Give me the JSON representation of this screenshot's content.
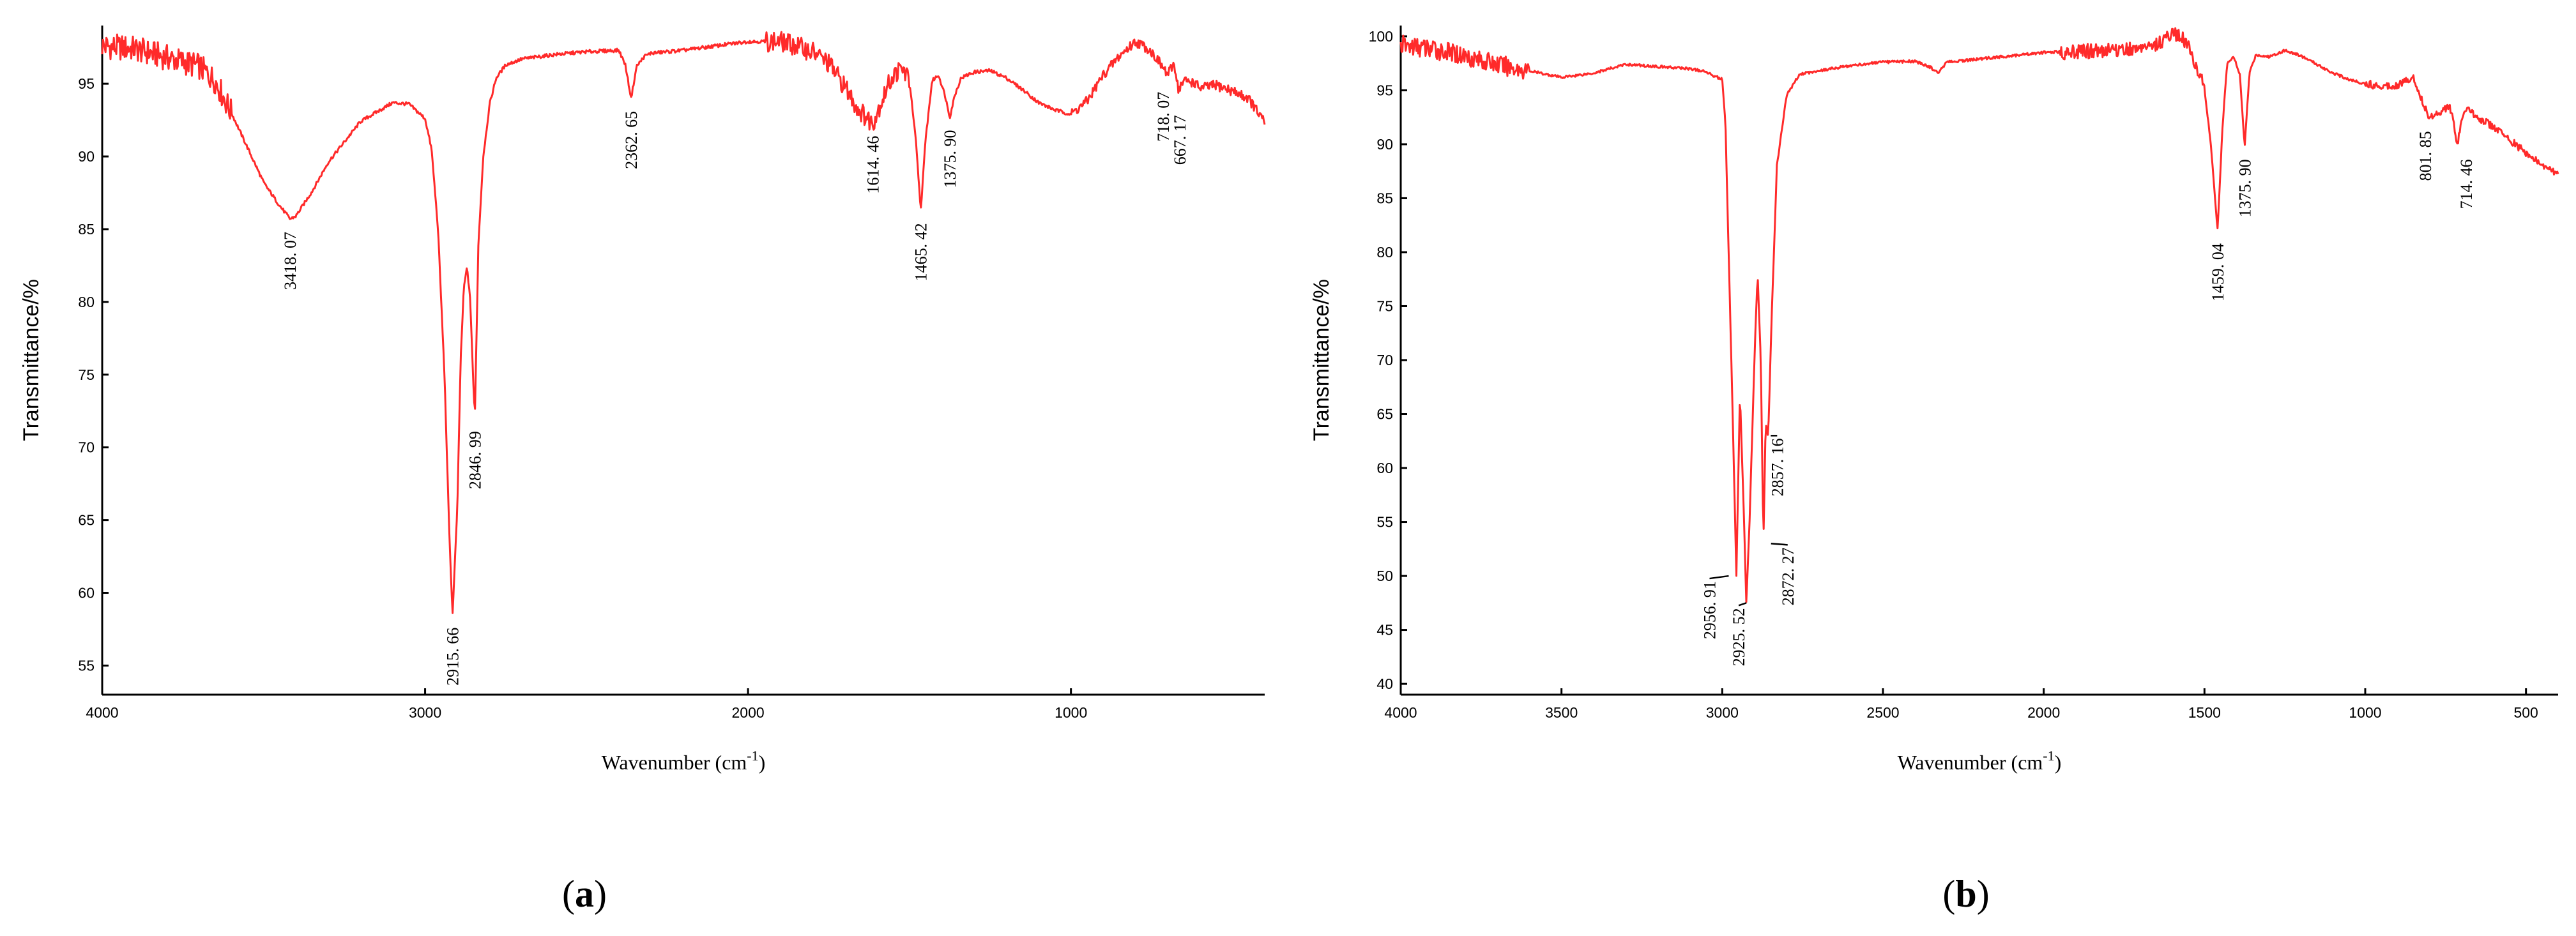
{
  "chart_data": [
    {
      "type": "line",
      "panel": "a",
      "caption": "a",
      "xlabel": "Wavenumber (cm",
      "xlabel_sup": "-1",
      "xlabel_end": ")",
      "ylabel": "Transmittance/%",
      "xlim": [
        4000,
        400
      ],
      "ylim": [
        53,
        99
      ],
      "xticks": [
        4000,
        3000,
        2000,
        1000
      ],
      "xtick_labels": [
        "4000",
        "3000",
        "2000",
        "1000"
      ],
      "yticks": [
        55,
        60,
        65,
        70,
        75,
        80,
        85,
        90,
        95
      ],
      "ytick_labels": [
        "55",
        "60",
        "65",
        "70",
        "75",
        "80",
        "85",
        "90",
        "95"
      ],
      "line_color": "#ff2a2a",
      "series": [
        {
          "x": [
            4000,
            3900,
            3850,
            3800,
            3700,
            3650,
            3600,
            3550,
            3500,
            3450,
            3418,
            3400,
            3350,
            3300,
            3200,
            3100,
            3050,
            3000,
            2980,
            2960,
            2940,
            2925,
            2915,
            2900,
            2890,
            2880,
            2870,
            2860,
            2850,
            2846,
            2835,
            2820,
            2800,
            2780,
            2750,
            2700,
            2600,
            2500,
            2400,
            2380,
            2362,
            2345,
            2320,
            2300,
            2200,
            2100,
            2000,
            1900,
            1850,
            1800,
            1750,
            1700,
            1660,
            1630,
            1614,
            1590,
            1560,
            1540,
            1520,
            1500,
            1480,
            1465,
            1450,
            1430,
            1410,
            1390,
            1375,
            1360,
            1340,
            1300,
            1250,
            1200,
            1150,
            1100,
            1050,
            1000,
            950,
            900,
            850,
            800,
            760,
            740,
            718,
            700,
            680,
            667,
            650,
            620,
            600,
            550,
            500,
            450,
            400
          ],
          "y": [
            97.6,
            97.4,
            97.1,
            96.8,
            96.2,
            95.2,
            93,
            90.6,
            88.2,
            86.6,
            85.7,
            85.9,
            87.6,
            89.6,
            92.4,
            93.7,
            93.6,
            92.6,
            90.5,
            85,
            75,
            64,
            58.5,
            66,
            76,
            81,
            82.4,
            80,
            74,
            72,
            84,
            90,
            93.6,
            95.4,
            96.3,
            96.7,
            97,
            97.2,
            97.3,
            96.3,
            94,
            96.2,
            96.9,
            97.1,
            97.3,
            97.6,
            97.9,
            97.9,
            97.6,
            97.2,
            96.4,
            94.8,
            93.3,
            92.6,
            92.3,
            93.6,
            95.2,
            95.8,
            96,
            95.2,
            91,
            86.3,
            91.2,
            95.2,
            95.6,
            94.2,
            92.7,
            94.2,
            95.4,
            95.8,
            95.9,
            95.4,
            94.6,
            93.7,
            93.2,
            92.9,
            93.8,
            95.6,
            96.9,
            97.9,
            97.4,
            96.9,
            96.2,
            95.6,
            96.4,
            94.6,
            95.2,
            95.1,
            94.7,
            94.9,
            94.5,
            94,
            92.3
          ]
        }
      ],
      "annotations": [
        {
          "text": "3418. 07",
          "x": 3418,
          "y": 85.7
        },
        {
          "text": "2915. 66",
          "x": 2915,
          "y": 58.5
        },
        {
          "text": "2846. 99",
          "x": 2846,
          "y": 72
        },
        {
          "text": "2362. 65",
          "x": 2362,
          "y": 94
        },
        {
          "text": "1614. 46",
          "x": 1614,
          "y": 92.3
        },
        {
          "text": "1465. 42",
          "x": 1465,
          "y": 86.3
        },
        {
          "text": "1375. 90",
          "x": 1375,
          "y": 92.7
        },
        {
          "text": "718. 07",
          "x": 718,
          "y": 96.2
        },
        {
          "text": "667. 17",
          "x": 667,
          "y": 94.6
        }
      ]
    },
    {
      "type": "line",
      "panel": "b",
      "caption": "b",
      "xlabel": "Wavenumber (cm",
      "xlabel_sup": "-1",
      "xlabel_end": ")",
      "ylabel": "Transmittance/%",
      "xlim": [
        4000,
        400
      ],
      "ylim": [
        39,
        101
      ],
      "xticks": [
        4000,
        3500,
        3000,
        2500,
        2000,
        1500,
        1000,
        500
      ],
      "xtick_labels": [
        "4000",
        "3500",
        "3000",
        "2500",
        "2000",
        "1500",
        "1000",
        "500"
      ],
      "yticks": [
        40,
        45,
        50,
        55,
        60,
        65,
        70,
        75,
        80,
        85,
        90,
        95,
        100
      ],
      "ytick_labels": [
        "40",
        "45",
        "50",
        "55",
        "60",
        "65",
        "70",
        "75",
        "80",
        "85",
        "90",
        "95",
        "100"
      ],
      "line_color": "#ff2a2a",
      "series": [
        {
          "x": [
            4000,
            3900,
            3800,
            3700,
            3600,
            3500,
            3400,
            3300,
            3200,
            3100,
            3050,
            3000,
            2990,
            2970,
            2956,
            2945,
            2935,
            2925,
            2915,
            2900,
            2890,
            2880,
            2872,
            2865,
            2857,
            2845,
            2830,
            2800,
            2760,
            2700,
            2600,
            2500,
            2400,
            2350,
            2330,
            2310,
            2300,
            2200,
            2100,
            2000,
            1900,
            1800,
            1700,
            1650,
            1600,
            1560,
            1530,
            1500,
            1480,
            1470,
            1459,
            1445,
            1430,
            1410,
            1390,
            1375,
            1360,
            1340,
            1300,
            1250,
            1200,
            1150,
            1100,
            1050,
            1000,
            950,
            900,
            850,
            830,
            801,
            780,
            760,
            740,
            730,
            714,
            700,
            680,
            650,
            600,
            550,
            500,
            450,
            400
          ],
          "y": [
            99.2,
            98.8,
            98.2,
            97.4,
            96.8,
            96.2,
            96.6,
            97.4,
            97.2,
            97,
            96.7,
            96,
            92,
            68,
            50,
            67,
            58,
            47.5,
            55,
            70,
            78,
            70,
            53,
            64,
            63,
            75,
            88,
            94.5,
            96.5,
            96.8,
            97.3,
            97.6,
            97.7,
            97.1,
            96.6,
            97.3,
            97.6,
            97.9,
            98.2,
            98.5,
            98.6,
            98.7,
            98.9,
            99.2,
            100.3,
            99.6,
            97.6,
            95.2,
            90,
            86,
            82,
            91,
            97.4,
            98.2,
            96.4,
            89.8,
            96.6,
            98.3,
            98.1,
            98.7,
            98.2,
            97.4,
            96.6,
            96,
            95.6,
            95.4,
            95.5,
            96.2,
            94.6,
            92.4,
            92.9,
            93.1,
            93.6,
            92.8,
            89.8,
            92.4,
            93.2,
            92.5,
            91.6,
            90.4,
            89.2,
            88,
            87.3
          ]
        }
      ],
      "annotations": [
        {
          "text": "2956. 91",
          "x": 2956,
          "y": 50
        },
        {
          "text": "2925. 52",
          "x": 2925,
          "y": 47.5
        },
        {
          "text": "2872. 27",
          "x": 2872,
          "y": 53
        },
        {
          "text": "2857. 16",
          "x": 2857,
          "y": 63
        },
        {
          "text": "1459. 04",
          "x": 1459,
          "y": 82
        },
        {
          "text": "1375. 90",
          "x": 1375,
          "y": 89.8
        },
        {
          "text": "801. 85",
          "x": 801,
          "y": 92.4
        },
        {
          "text": "714. 46",
          "x": 714,
          "y": 89.8
        }
      ]
    }
  ]
}
